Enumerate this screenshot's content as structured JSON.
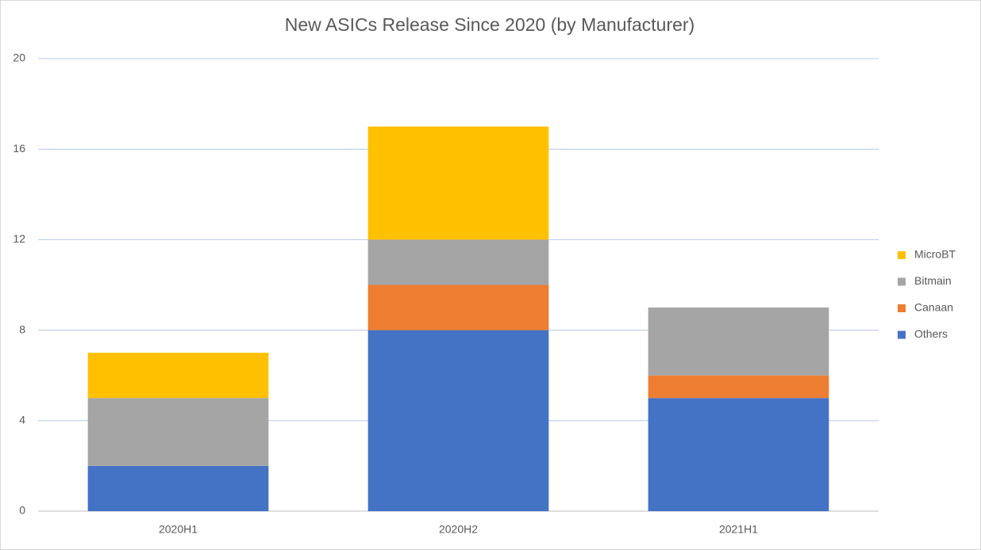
{
  "chart_data": {
    "type": "stacked-bar",
    "title": "New ASICs Release Since 2020 (by Manufacturer)",
    "categories": [
      "2020H1",
      "2020H2",
      "2021H1"
    ],
    "series": [
      {
        "name": "Others",
        "color": "#4472c4",
        "values": [
          2,
          8,
          5
        ]
      },
      {
        "name": "Canaan",
        "color": "#ed7d31",
        "values": [
          0,
          2,
          1
        ]
      },
      {
        "name": "Bitmain",
        "color": "#a5a5a5",
        "values": [
          3,
          2,
          3
        ]
      },
      {
        "name": "MicroBT",
        "color": "#ffc000",
        "values": [
          2,
          5,
          0
        ]
      }
    ],
    "ylim": [
      0,
      20
    ],
    "yticks": [
      0,
      4,
      8,
      12,
      16,
      20
    ],
    "grid": true,
    "legend": "right"
  }
}
